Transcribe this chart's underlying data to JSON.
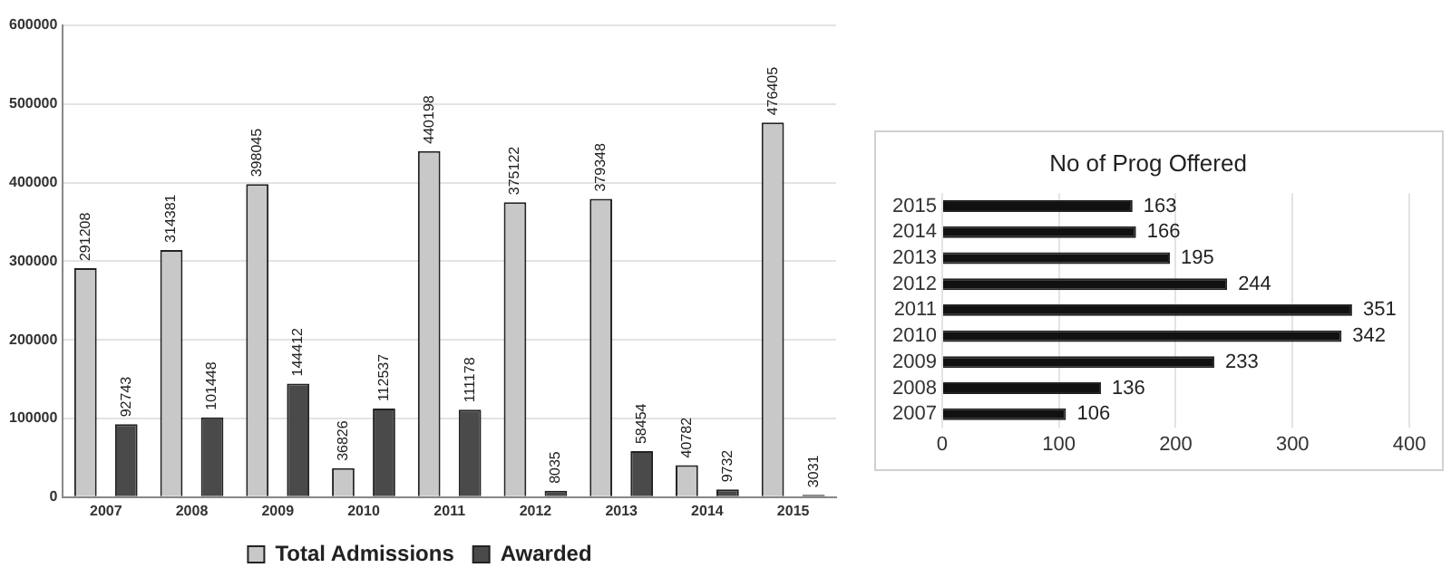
{
  "chart_data": [
    {
      "type": "bar",
      "categories": [
        "2007",
        "2008",
        "2009",
        "2010",
        "2011",
        "2012",
        "2013",
        "2014",
        "2015"
      ],
      "series": [
        {
          "name": "Total Admissions",
          "color": "#c8c8c8",
          "values": [
            291208,
            314381,
            398045,
            36826,
            440198,
            375122,
            379348,
            40782,
            476405
          ]
        },
        {
          "name": "Awarded",
          "color": "#4a4a4a",
          "values": [
            92743,
            101448,
            144412,
            112537,
            111178,
            8035,
            58454,
            9732,
            3031
          ]
        }
      ],
      "ylim": [
        0,
        600000
      ],
      "yticks": [
        0,
        100000,
        200000,
        300000,
        400000,
        500000,
        600000
      ],
      "grid": "y",
      "legend": "bottom",
      "data_labels": true
    },
    {
      "type": "bar",
      "orientation": "horizontal",
      "title": "No of Prog Offered",
      "categories": [
        "2015",
        "2014",
        "2013",
        "2012",
        "2011",
        "2010",
        "2009",
        "2008",
        "2007"
      ],
      "values": [
        163,
        166,
        195,
        244,
        351,
        342,
        233,
        136,
        106
      ],
      "color": "#111111",
      "xlim": [
        0,
        400
      ],
      "xticks": [
        0,
        100,
        200,
        300,
        400
      ],
      "grid": "x",
      "data_labels": true
    }
  ]
}
